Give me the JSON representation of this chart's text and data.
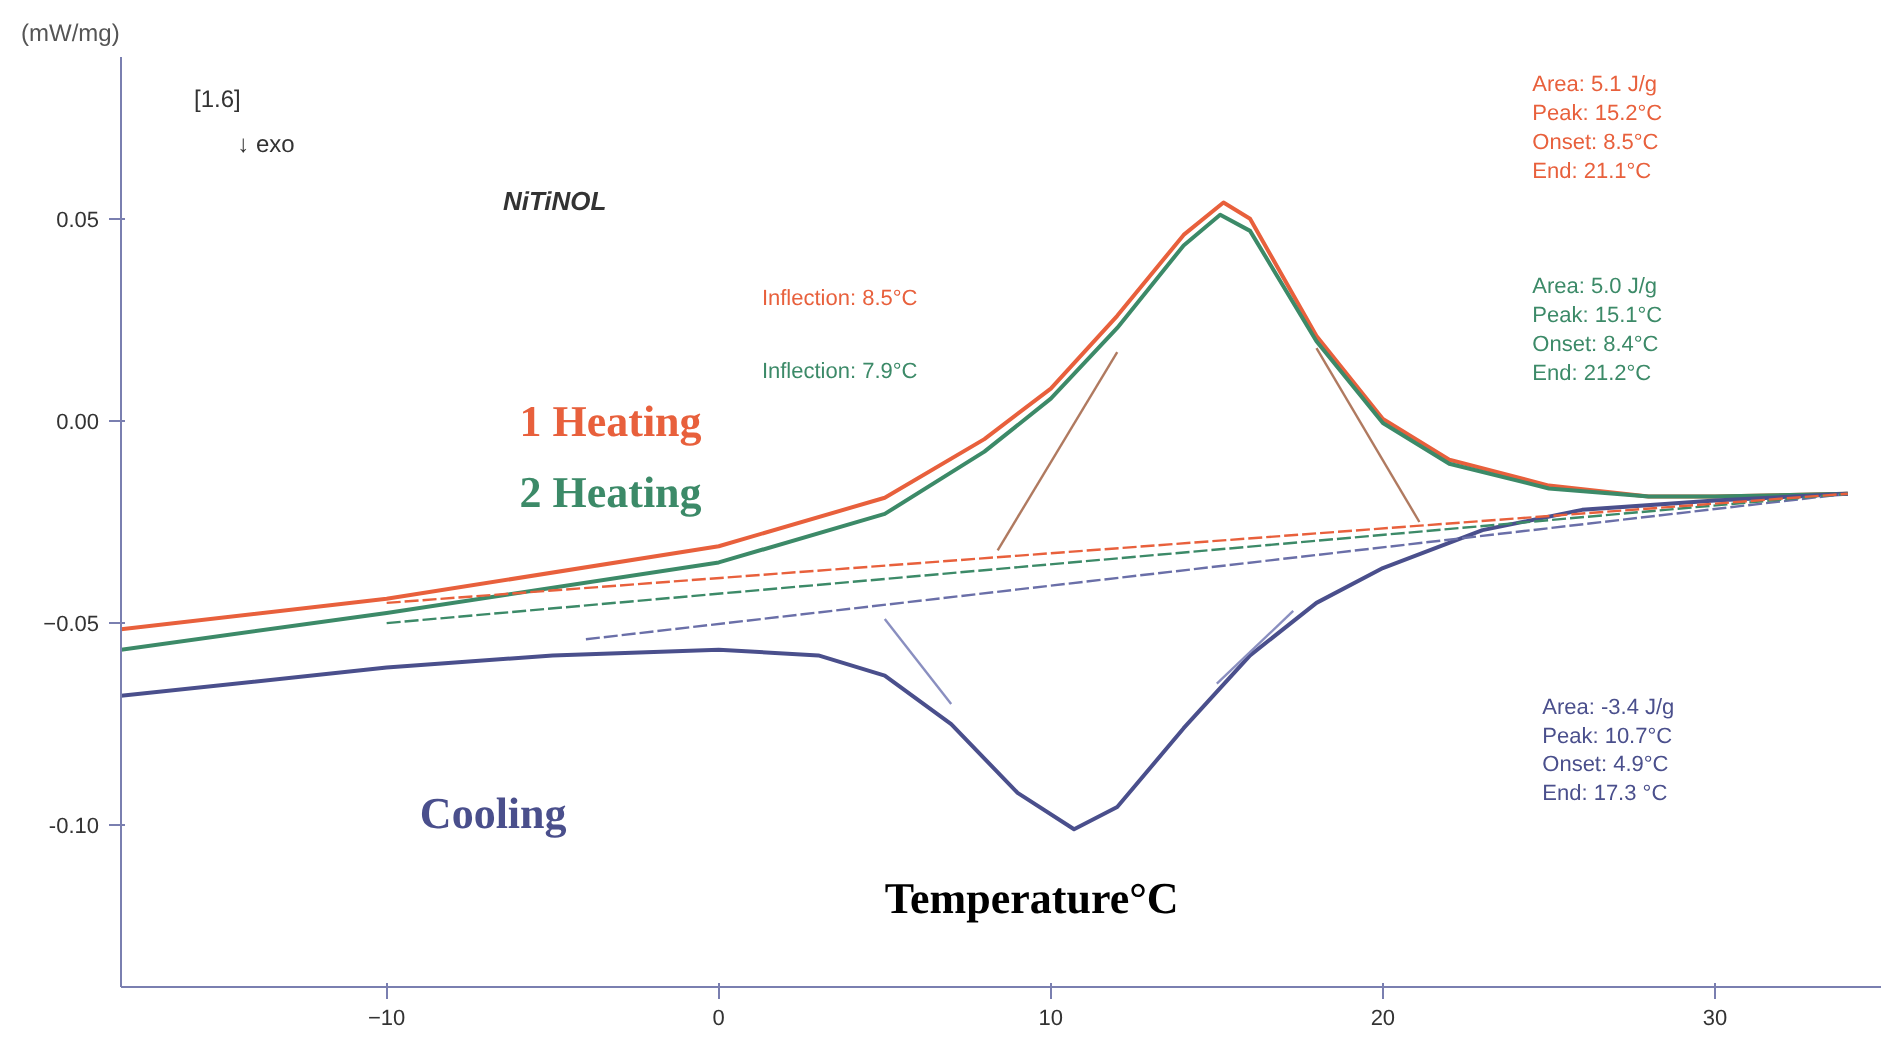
{
  "chart_data": {
    "type": "line",
    "xlabel": "Temperature°C",
    "ylabel": "(mW/mg)",
    "xlim": [
      -18,
      35
    ],
    "ylim": [
      -0.14,
      0.09
    ],
    "xticks": [
      -10,
      0,
      10,
      20,
      30
    ],
    "yticks": [
      0.05,
      {
        "value": 0,
        "label": "0.00"
      },
      -0.05,
      {
        "value": -0.1,
        "label": "-0.10"
      }
    ],
    "grid": false,
    "marker": "none",
    "series": [
      {
        "name": "1 Heating",
        "color": "#e8603c",
        "line_style": "solid",
        "x": [
          -18,
          -10,
          0,
          5,
          8,
          10,
          12,
          14,
          15.2,
          16,
          18,
          20,
          22,
          25,
          28,
          30,
          34
        ],
        "values": [
          -0.0515,
          -0.044,
          -0.031,
          -0.019,
          -0.0045,
          0.008,
          0.026,
          0.046,
          0.054,
          0.05,
          0.021,
          0.0005,
          -0.0096,
          -0.016,
          -0.0187,
          -0.0187,
          -0.018
        ]
      },
      {
        "name": "2 Heating",
        "color": "#3c8a68",
        "line_style": "solid",
        "x": [
          -18,
          -10,
          0,
          5,
          8,
          10,
          12,
          14,
          15.1,
          16,
          18,
          20,
          22,
          25,
          28,
          30,
          34
        ],
        "values": [
          -0.0566,
          -0.0475,
          -0.035,
          -0.023,
          -0.0076,
          0.0055,
          0.023,
          0.0434,
          0.051,
          0.047,
          0.0197,
          -0.0005,
          -0.0106,
          -0.0167,
          -0.0187,
          -0.0187,
          -0.018
        ]
      },
      {
        "name": "Cooling",
        "color": "#4a4f8c",
        "line_style": "solid",
        "x": [
          -18,
          -10,
          -5,
          0,
          3,
          5,
          7,
          9,
          10.7,
          12,
          14,
          16,
          18,
          20,
          23,
          26,
          30,
          34
        ],
        "values": [
          -0.068,
          -0.061,
          -0.058,
          -0.0566,
          -0.058,
          -0.063,
          -0.075,
          -0.092,
          -0.101,
          -0.0955,
          -0.076,
          -0.058,
          -0.045,
          -0.0364,
          -0.027,
          -0.022,
          -0.0197,
          -0.018
        ]
      },
      {
        "color": "#6a6fa8",
        "line_style": "dashed",
        "x": [
          -4,
          34
        ],
        "values": [
          -0.054,
          -0.018
        ]
      },
      {
        "color": "#3c8a68",
        "line_style": "dashed",
        "x": [
          -10,
          34
        ],
        "values": [
          -0.05,
          -0.018
        ]
      },
      {
        "color": "#e8603c",
        "line_style": "dashed",
        "x": [
          -10,
          34
        ],
        "values": [
          -0.045,
          -0.018
        ]
      },
      {
        "color": "#b07a60",
        "line_style": "solid",
        "x": [
          8.4,
          12.0
        ],
        "values": [
          -0.032,
          0.017
        ]
      },
      {
        "color": "#b07a60",
        "line_style": "solid",
        "x": [
          18.0,
          21.1
        ],
        "values": [
          0.018,
          -0.025
        ]
      },
      {
        "color": "#8a8fc0",
        "line_style": "solid",
        "x": [
          5.0,
          7.0
        ],
        "values": [
          -0.049,
          -0.07
        ]
      },
      {
        "color": "#8a8fc0",
        "line_style": "solid",
        "x": [
          15.0,
          17.3
        ],
        "values": [
          -0.065,
          -0.047
        ]
      }
    ],
    "annotations": [
      "[1.6]",
      "↓ exo",
      "NiTiNOL",
      "Inflection:    8.5°C",
      "Inflection:    7.9°C",
      "Area:      5.1 J/g\nPeak:    15.2°C\nOnset:     8.5°C\nEnd:      21.1°C",
      "Area:      5.0 J/g\nPeak:    15.1°C\nOnset:     8.4°C\nEnd:      21.2°C",
      "Area:     -3.4 J/g\nPeak:    10.7°C\nOnset:     4.9°C\nEnd:      17.3 °C"
    ]
  }
}
